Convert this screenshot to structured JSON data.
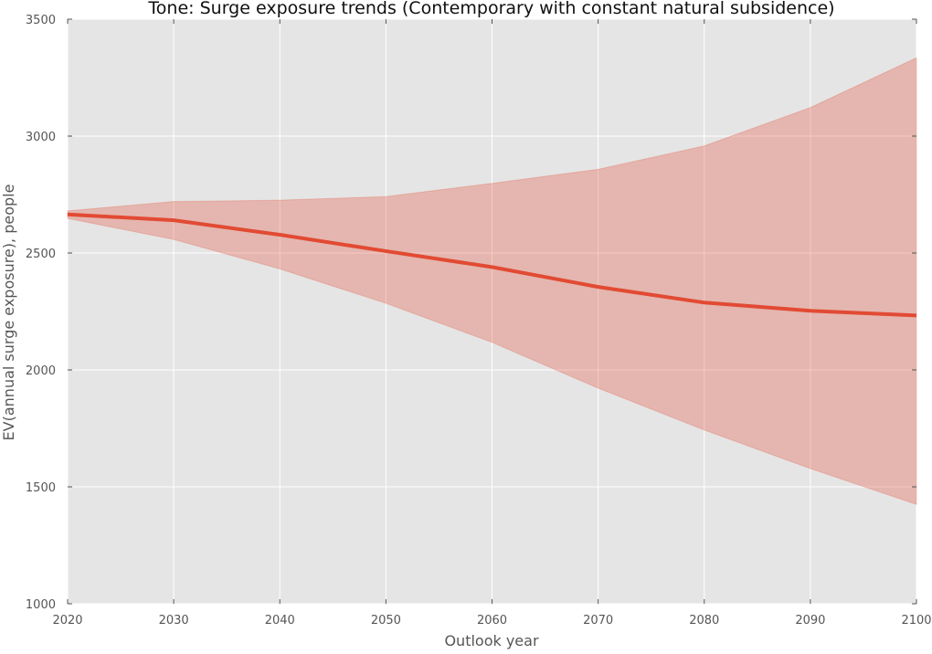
{
  "chart_data": {
    "type": "line",
    "title": "Tone: Surge exposure trends (Contemporary with constant natural subsidence)",
    "xlabel": "Outlook year",
    "ylabel": "EV(annual surge exposure), people",
    "x": [
      2020,
      2030,
      2040,
      2050,
      2060,
      2070,
      2080,
      2090,
      2100
    ],
    "xlim": [
      2020,
      2100
    ],
    "ylim": [
      1000,
      3500
    ],
    "x_ticks": [
      "2020",
      "2030",
      "2040",
      "2050",
      "2060",
      "2070",
      "2080",
      "2090",
      "2100"
    ],
    "y_ticks": [
      "1000",
      "1500",
      "2000",
      "2500",
      "3000",
      "3500"
    ],
    "grid": true,
    "series": [
      {
        "values": [
          2665,
          2640,
          2578,
          2508,
          2440,
          2355,
          2288,
          2253,
          2233
        ],
        "lower": [
          2648,
          2558,
          2432,
          2285,
          2118,
          1922,
          1743,
          1578,
          1425
        ],
        "upper": [
          2680,
          2720,
          2726,
          2741,
          2798,
          2858,
          2958,
          3122,
          3335
        ],
        "color": "#e24a33",
        "band_color": "#e24a33"
      }
    ],
    "background": "#e5e5e5",
    "grid_color": "#ffffff"
  }
}
